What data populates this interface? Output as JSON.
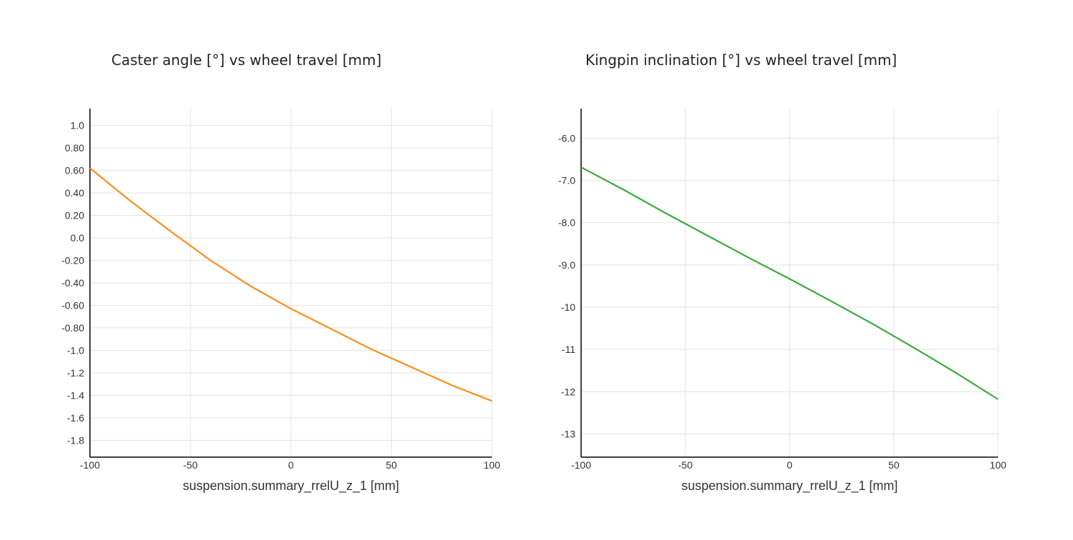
{
  "chart_data": [
    {
      "type": "line",
      "title": "Caster angle [°] vs wheel travel [mm]",
      "xlabel": "suspension.summary_rrelU_z_1 [mm]",
      "ylabel": "",
      "xlim": [
        -100,
        100
      ],
      "ylim": [
        -1.95,
        1.15
      ],
      "grid": true,
      "x_ticks": [
        -100,
        -50,
        0,
        50,
        100
      ],
      "x_tick_labels": [
        "-100",
        "-50",
        "0",
        "50",
        "100"
      ],
      "y_ticks": [
        1.0,
        0.8,
        0.6,
        0.4,
        0.2,
        0.0,
        -0.2,
        -0.4,
        -0.6,
        -0.8,
        -1.0,
        -1.2,
        -1.4,
        -1.6,
        -1.8
      ],
      "y_tick_labels": [
        "1.0",
        "0.80",
        "0.60",
        "0.40",
        "0.20",
        "0.0",
        "-0.20",
        "-0.40",
        "-0.60",
        "-0.80",
        "-1.0",
        "-1.2",
        "-1.4",
        "-1.6",
        "-1.8"
      ],
      "color": "#ff8c1a",
      "series": [
        {
          "x": [
            -100,
            -80,
            -60,
            -40,
            -20,
            0,
            20,
            40,
            60,
            80,
            100
          ],
          "y": [
            0.62,
            0.33,
            0.06,
            -0.2,
            -0.43,
            -0.63,
            -0.81,
            -0.99,
            -1.15,
            -1.31,
            -1.45
          ]
        }
      ]
    },
    {
      "type": "line",
      "title": "Kingpin inclination [°] vs wheel travel [mm]",
      "xlabel": "suspension.summary_rrelU_z_1 [mm]",
      "ylabel": "",
      "xlim": [
        -100,
        100
      ],
      "ylim": [
        -13.55,
        -5.3
      ],
      "grid": true,
      "x_ticks": [
        -100,
        -50,
        0,
        50,
        100
      ],
      "x_tick_labels": [
        "-100",
        "-50",
        "0",
        "50",
        "100"
      ],
      "y_ticks": [
        -6,
        -7,
        -8,
        -9,
        -10,
        -11,
        -12,
        -13
      ],
      "y_tick_labels": [
        "-6.0",
        "-7.0",
        "-8.0",
        "-9.0",
        "-10",
        "-11",
        "-12",
        "-13"
      ],
      "color": "#3aaa3a",
      "series": [
        {
          "x": [
            -100,
            -80,
            -60,
            -40,
            -20,
            0,
            20,
            40,
            60,
            80,
            100
          ],
          "y": [
            -6.69,
            -7.21,
            -7.76,
            -8.29,
            -8.82,
            -9.33,
            -9.86,
            -10.4,
            -10.97,
            -11.56,
            -12.18
          ]
        }
      ]
    }
  ]
}
